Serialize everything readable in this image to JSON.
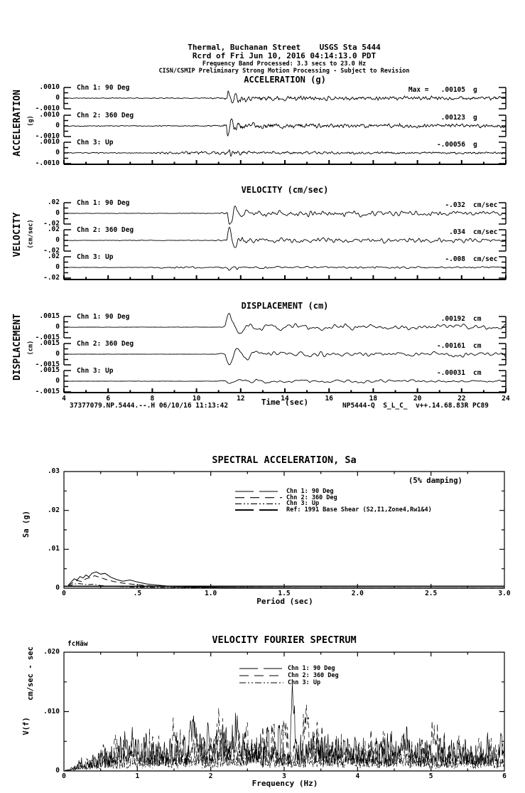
{
  "header": {
    "line1": "Thermal, Buchanan Street    USGS Sta 5444",
    "line2": "Rcrd of Fri Jun 10, 2016 04:14:13.0 PDT",
    "line3": "Frequency Band Processed: 3.3 secs to 23.0 Hz",
    "line4": "CISN/CSMIP Preliminary Strong Motion Processing - Subject to Revision"
  },
  "footer": {
    "left": "37377079.NP.5444.--.H 06/10/16 11:13:42",
    "right": "NP5444-Q  S_L_C_  v++.14.68.83R PC89"
  },
  "chart_data": [
    {
      "type": "line",
      "subtype": "seismogram",
      "title": "ACCELERATION (g)",
      "ylabel": "ACCELERATION",
      "ylabel_unit": "(g)",
      "unit": "g",
      "xlim": [
        4,
        24
      ],
      "ylim": [
        -0.001,
        0.001
      ],
      "ytick_labels": [
        ".0010",
        "0",
        "-.0010"
      ],
      "channels": [
        {
          "label": "Chn 1: 90 Deg",
          "max_text": "Max =   .00105",
          "max_value": 0.00105,
          "sim": {
            "seed": 11,
            "smooth": 1,
            "env": [
              [
                4,
                0.05
              ],
              [
                10.5,
                0.06
              ],
              [
                11.2,
                0.12
              ],
              [
                11.55,
                0.38
              ],
              [
                12.3,
                0.3
              ],
              [
                15,
                0.26
              ],
              [
                19,
                0.22
              ],
              [
                24,
                0.2
              ]
            ],
            "spike": {
              "A": 1.02,
              "f": 3.2,
              "tau": 0.28,
              "ts": 11.38
            }
          }
        },
        {
          "label": "Chn 2: 360 Deg",
          "max_text": ".00123",
          "max_value": 0.00123,
          "sim": {
            "seed": 22,
            "smooth": 1,
            "env": [
              [
                4,
                0.05
              ],
              [
                10.5,
                0.06
              ],
              [
                11.2,
                0.12
              ],
              [
                11.55,
                0.38
              ],
              [
                12.5,
                0.3
              ],
              [
                16,
                0.26
              ],
              [
                24,
                0.2
              ]
            ],
            "spike": {
              "A": -1.2,
              "f": 3.2,
              "tau": 0.26,
              "ts": 11.36
            }
          }
        },
        {
          "label": "Chn 3: Up",
          "max_text": "-.00056",
          "max_value": -0.00056,
          "sim": {
            "seed": 33,
            "smooth": 1,
            "env": [
              [
                4,
                0.06
              ],
              [
                7.9,
                0.06
              ],
              [
                8.2,
                0.2
              ],
              [
                11.2,
                0.2
              ],
              [
                11.5,
                0.4
              ],
              [
                12.3,
                0.18
              ],
              [
                16,
                0.15
              ],
              [
                24,
                0.13
              ]
            ],
            "spike": {
              "A": 0.42,
              "f": 4.5,
              "tau": 0.25,
              "ts": 11.4
            }
          }
        }
      ]
    },
    {
      "type": "line",
      "subtype": "seismogram",
      "title": "VELOCITY (cm/sec)",
      "ylabel": "VELOCITY",
      "ylabel_unit": "(cm/sec)",
      "unit": "cm/sec",
      "xlim": [
        4,
        24
      ],
      "ylim": [
        -0.02,
        0.02
      ],
      "ytick_labels": [
        ".02",
        "0",
        "-.02"
      ],
      "channels": [
        {
          "label": "Chn 1: 90 Deg",
          "max_text": "-.032",
          "max_value": -0.032,
          "sim": {
            "seed": 44,
            "smooth": 3,
            "env": [
              [
                4,
                0.03
              ],
              [
                10.6,
                0.04
              ],
              [
                11.3,
                0.12
              ],
              [
                11.7,
                0.45
              ],
              [
                13,
                0.4
              ],
              [
                17,
                0.34
              ],
              [
                24,
                0.28
              ]
            ],
            "spike": {
              "A": -1.5,
              "f": 2.0,
              "tau": 0.42,
              "ts": 11.4
            }
          }
        },
        {
          "label": "Chn 2: 360 Deg",
          "max_text": ".034",
          "max_value": 0.034,
          "sim": {
            "seed": 55,
            "smooth": 3,
            "env": [
              [
                4,
                0.03
              ],
              [
                10.6,
                0.04
              ],
              [
                11.3,
                0.12
              ],
              [
                11.7,
                0.45
              ],
              [
                13,
                0.4
              ],
              [
                17,
                0.34
              ],
              [
                24,
                0.28
              ]
            ],
            "spike": {
              "A": 1.62,
              "f": 2.1,
              "tau": 0.4,
              "ts": 11.38
            }
          }
        },
        {
          "label": "Chn 3: Up",
          "max_text": "-.008",
          "max_value": -0.008,
          "sim": {
            "seed": 66,
            "smooth": 3,
            "env": [
              [
                4,
                0.03
              ],
              [
                7.9,
                0.04
              ],
              [
                8.2,
                0.16
              ],
              [
                11.3,
                0.16
              ],
              [
                11.6,
                0.32
              ],
              [
                12.5,
                0.16
              ],
              [
                24,
                0.13
              ]
            ],
            "spike": {
              "A": -0.3,
              "f": 2.8,
              "tau": 0.4,
              "ts": 11.42
            }
          }
        }
      ]
    },
    {
      "type": "line",
      "subtype": "seismogram",
      "title": "DISPLACEMENT (cm)",
      "ylabel": "DISPLACEMENT",
      "ylabel_unit": "(cm)",
      "unit": "cm",
      "xlabel": "Time (sec)",
      "xlim": [
        4,
        24
      ],
      "xtick_labels": [
        "4",
        "6",
        "8",
        "10",
        "12",
        "14",
        "16",
        "18",
        "20",
        "22",
        "24"
      ],
      "ylim": [
        -0.0015,
        0.0015
      ],
      "ytick_labels": [
        ".0015",
        "0",
        "-.0015"
      ],
      "channels": [
        {
          "label": "Chn 1: 90 Deg",
          "max_text": ".00192",
          "max_value": 0.00192,
          "sim": {
            "seed": 77,
            "smooth": 8,
            "env": [
              [
                4,
                0.02
              ],
              [
                10.8,
                0.02
              ],
              [
                11.5,
                0.35
              ],
              [
                12.2,
                0.45
              ],
              [
                16,
                0.4
              ],
              [
                24,
                0.34
              ]
            ],
            "spike": {
              "A": 1.25,
              "f": 1.25,
              "tau": 0.75,
              "ts": 11.3
            }
          }
        },
        {
          "label": "Chn 2: 360 Deg",
          "max_text": "-.00161",
          "max_value": -0.00161,
          "sim": {
            "seed": 88,
            "smooth": 8,
            "env": [
              [
                4,
                0.02
              ],
              [
                10.8,
                0.02
              ],
              [
                11.5,
                0.35
              ],
              [
                12.2,
                0.45
              ],
              [
                16,
                0.4
              ],
              [
                24,
                0.34
              ]
            ],
            "spike": {
              "A": -1.05,
              "f": 1.3,
              "tau": 0.7,
              "ts": 11.3
            }
          }
        },
        {
          "label": "Chn 3: Up",
          "max_text": "-.00031",
          "max_value": -0.00031,
          "sim": {
            "seed": 99,
            "smooth": 8,
            "env": [
              [
                4,
                0.015
              ],
              [
                10.8,
                0.02
              ],
              [
                11.5,
                0.14
              ],
              [
                13,
                0.2
              ],
              [
                24,
                0.14
              ]
            ],
            "spike": {
              "A": -0.18,
              "f": 1.1,
              "tau": 0.8,
              "ts": 11.3
            }
          }
        }
      ]
    },
    {
      "type": "line",
      "subtype": "response-spectrum",
      "title": "SPECTRAL ACCELERATION, Sa",
      "xlabel": "Period (sec)",
      "ylabel": "Sa (g)",
      "annotation": "(5% damping)",
      "xlim": [
        0,
        3
      ],
      "ylim": [
        0,
        0.03
      ],
      "xtick_labels": [
        "0",
        ".5",
        "1.0",
        "1.5",
        "2.0",
        "2.5",
        "3.0"
      ],
      "ytick_labels": [
        ".03",
        ".02",
        ".01",
        "0"
      ],
      "series": [
        {
          "name": "Chn 1: 90 Deg",
          "dash": "solid",
          "x": [
            0.03,
            0.05,
            0.07,
            0.09,
            0.11,
            0.13,
            0.15,
            0.17,
            0.19,
            0.22,
            0.25,
            0.28,
            0.32,
            0.36,
            0.4,
            0.45,
            0.5,
            0.56,
            0.63,
            0.72,
            0.85,
            1.0,
            1.2,
            1.5,
            2.0,
            2.5,
            3.0
          ],
          "y": [
            0.0008,
            0.0016,
            0.0024,
            0.0021,
            0.003,
            0.0026,
            0.0034,
            0.0029,
            0.0038,
            0.0042,
            0.0036,
            0.0038,
            0.0028,
            0.0022,
            0.0018,
            0.0021,
            0.0016,
            0.0011,
            0.0008,
            0.0005,
            0.0003,
            0.00022,
            0.00015,
            0.0001,
            7e-05,
            5e-05,
            4e-05
          ]
        },
        {
          "name": "Chn 2: 360 Deg",
          "dash": "long-dash",
          "x": [
            0.03,
            0.06,
            0.09,
            0.12,
            0.15,
            0.18,
            0.21,
            0.25,
            0.29,
            0.34,
            0.4,
            0.47,
            0.55,
            0.65,
            0.8,
            1.0,
            1.3,
            1.7,
            2.2,
            3.0
          ],
          "y": [
            0.0006,
            0.0014,
            0.002,
            0.0017,
            0.0024,
            0.0028,
            0.0032,
            0.0027,
            0.0022,
            0.0017,
            0.0013,
            0.001,
            0.0007,
            0.0005,
            0.0003,
            0.0002,
            0.00013,
            9e-05,
            6e-05,
            4e-05
          ]
        },
        {
          "name": "Chn 3: Up",
          "dash": "dash-dot",
          "x": [
            0.03,
            0.06,
            0.09,
            0.12,
            0.16,
            0.2,
            0.25,
            0.31,
            0.38,
            0.47,
            0.6,
            0.8,
            1.1,
            1.6,
            2.3,
            3.0
          ],
          "y": [
            0.0004,
            0.0009,
            0.0012,
            0.0011,
            0.0009,
            0.001,
            0.0007,
            0.0005,
            0.0004,
            0.0003,
            0.0002,
            0.00012,
            8e-05,
            5e-05,
            4e-05,
            3e-05
          ]
        },
        {
          "name": "Ref: 1991 Base Shear (S2,I1,Zone4,Rw1&4)",
          "dash": "solid",
          "x": [
            0,
            3
          ],
          "y": [
            0.0005,
            0.0005
          ]
        }
      ]
    },
    {
      "type": "line",
      "subtype": "fourier-spectrum",
      "title": "VELOCITY FOURIER SPECTRUM",
      "xlabel": "Frequency (Hz)",
      "ylabel": "V(f)",
      "ylabel_unit": "cm/sec - sec",
      "corner_text": "fcHäw",
      "xlim": [
        0,
        6
      ],
      "ylim": [
        0,
        0.02
      ],
      "xtick_labels": [
        "0",
        "1",
        "2",
        "3",
        "4",
        "5",
        "6"
      ],
      "ytick_labels": [
        ".020",
        ".010",
        "0"
      ],
      "series": [
        {
          "name": "Chn 1: 90 Deg",
          "dash": "solid",
          "sim": {
            "seed": 101,
            "base": [
              [
                0,
                0
              ],
              [
                0.1,
                0.0004
              ],
              [
                0.3,
                0.0018
              ],
              [
                0.6,
                0.0034
              ],
              [
                1.0,
                0.0042
              ],
              [
                1.8,
                0.0047
              ],
              [
                3.0,
                0.005
              ],
              [
                4.0,
                0.0044
              ],
              [
                5.0,
                0.004
              ],
              [
                6,
                0.0038
              ]
            ],
            "bumps": [
              [
                3.12,
                0.009,
                0.025
              ],
              [
                1.78,
                0.0045,
                0.05
              ],
              [
                2.35,
                0.003,
                0.05
              ],
              [
                4.65,
                0.0025,
                0.06
              ],
              [
                0.95,
                0.002,
                0.05
              ]
            ]
          }
        },
        {
          "name": "Chn 2: 360 Deg",
          "dash": "long-dash",
          "sim": {
            "seed": 102,
            "base": [
              [
                0,
                0
              ],
              [
                0.1,
                0.0004
              ],
              [
                0.3,
                0.0018
              ],
              [
                0.6,
                0.0034
              ],
              [
                1.0,
                0.0042
              ],
              [
                1.8,
                0.0047
              ],
              [
                3.0,
                0.005
              ],
              [
                4.0,
                0.0044
              ],
              [
                5.0,
                0.004
              ],
              [
                6,
                0.0038
              ]
            ],
            "bumps": [
              [
                3.3,
                0.006,
                0.04
              ],
              [
                3.0,
                0.005,
                0.03
              ],
              [
                1.5,
                0.0035,
                0.05
              ],
              [
                5.05,
                0.0035,
                0.05
              ],
              [
                2.1,
                0.003,
                0.05
              ]
            ]
          }
        },
        {
          "name": "Chn 3: Up",
          "dash": "dash-dot",
          "sim": {
            "seed": 103,
            "base": [
              [
                0,
                0
              ],
              [
                0.1,
                0.0002
              ],
              [
                0.3,
                0.001
              ],
              [
                0.6,
                0.0019
              ],
              [
                1.0,
                0.0023
              ],
              [
                1.8,
                0.0026
              ],
              [
                3.0,
                0.0028
              ],
              [
                4.0,
                0.0024
              ],
              [
                5.0,
                0.0022
              ],
              [
                6,
                0.0021
              ]
            ],
            "bumps": [
              [
                2.6,
                0.0015,
                0.06
              ],
              [
                3.9,
                0.001,
                0.05
              ]
            ]
          }
        }
      ]
    }
  ]
}
